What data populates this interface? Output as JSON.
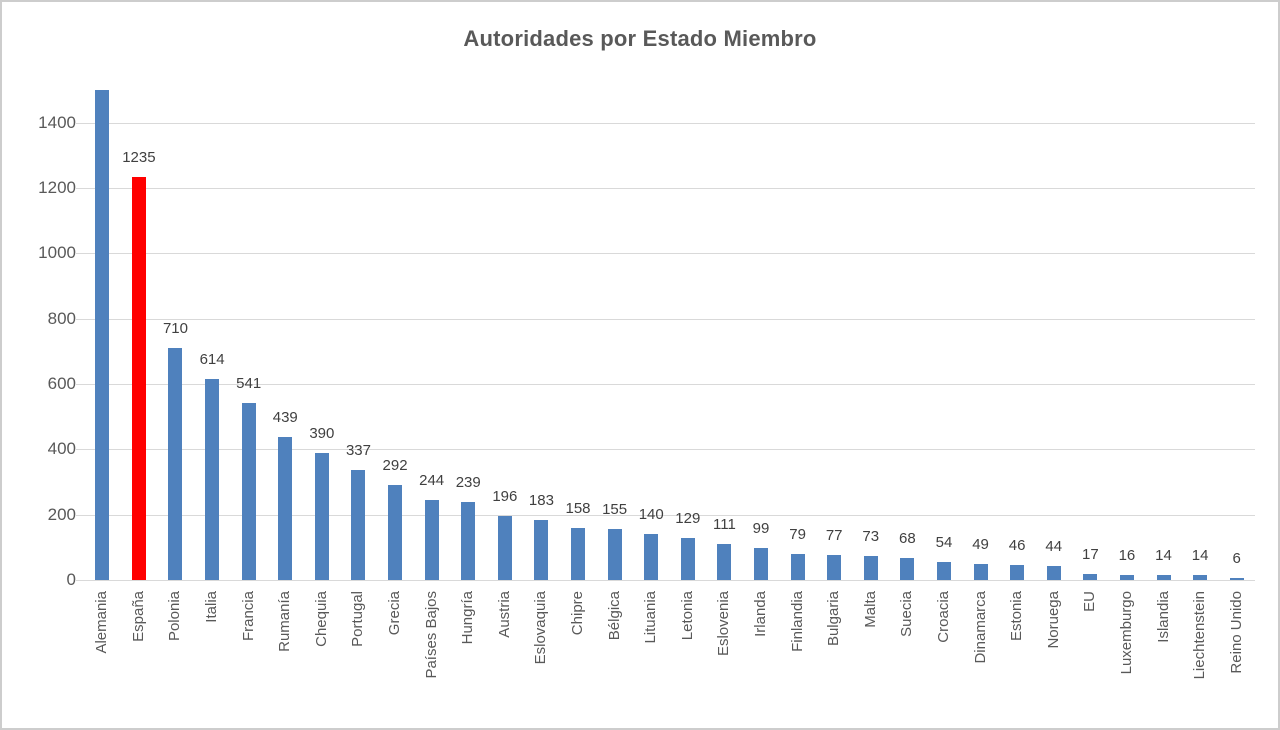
{
  "chart_data": {
    "type": "bar",
    "title": "Autoridades por Estado Miembro",
    "xlabel": "",
    "ylabel": "",
    "categories": [
      "Alemania",
      "España",
      "Polonia",
      "Italia",
      "Francia",
      "Rumanía",
      "Chequia",
      "Portugal",
      "Grecia",
      "Países Bajos",
      "Hungría",
      "Austria",
      "Eslovaquia",
      "Chipre",
      "Bélgica",
      "Lituania",
      "Letonia",
      "Eslovenia",
      "Irlanda",
      "Finlandia",
      "Bulgaria",
      "Malta",
      "Suecia",
      "Croacia",
      "Dinamarca",
      "Estonia",
      "Noruega",
      "EU",
      "Luxemburgo",
      "Islandia",
      "Liechtenstein",
      "Reino Unido"
    ],
    "values": [
      1500,
      1235,
      710,
      614,
      541,
      439,
      390,
      337,
      292,
      244,
      239,
      196,
      183,
      158,
      155,
      140,
      129,
      111,
      99,
      79,
      77,
      73,
      68,
      54,
      49,
      46,
      44,
      17,
      16,
      14,
      14,
      6
    ],
    "data_labels": [
      "",
      "1235",
      "710",
      "614",
      "541",
      "439",
      "390",
      "337",
      "292",
      "244",
      "239",
      "196",
      "183",
      "158",
      "155",
      "140",
      "129",
      "111",
      "99",
      "79",
      "77",
      "73",
      "68",
      "54",
      "49",
      "46",
      "44",
      "17",
      "16",
      "14",
      "14",
      "6"
    ],
    "highlight_category": "España",
    "highlight_index": 1,
    "first_bar_clipped_at_axis_top": true,
    "y_ticks": [
      0,
      200,
      400,
      600,
      800,
      1000,
      1200,
      1400
    ],
    "ylim": [
      0,
      1500
    ],
    "grid": true,
    "legend_position": "none",
    "colors": {
      "bar": "#4F81BD",
      "highlight": "#FF0000",
      "gridline": "#D9D9D9",
      "title_text": "#595959",
      "axis_text": "#595959",
      "data_label_text": "#404040",
      "border": "#CDCDCD",
      "background": "#FFFFFF"
    }
  }
}
